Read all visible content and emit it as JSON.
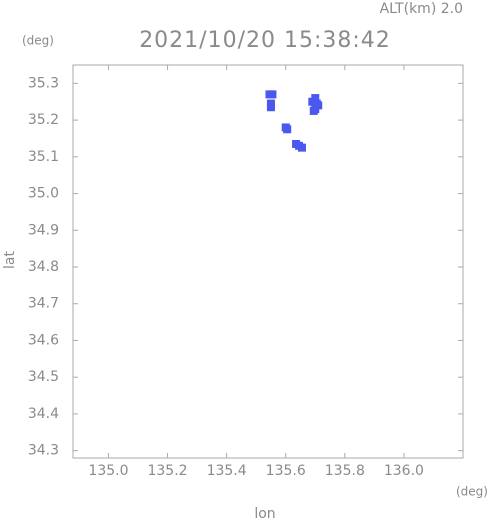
{
  "chart_data": {
    "type": "scatter",
    "title": "2021/10/20 15:38:42",
    "annotation": "ALT(km) 2.0",
    "y_unit": "(deg)",
    "x_unit": "(deg)",
    "x_label": "lon",
    "y_label": "lat",
    "color": "#4a58f0",
    "series": [
      {
        "x": [
          135.545,
          135.555,
          135.55,
          135.55,
          135.6,
          135.605,
          135.635,
          135.645,
          135.655,
          135.69,
          135.7,
          135.705,
          135.7,
          135.695,
          135.71
        ],
        "values": [
          35.27,
          35.27,
          35.245,
          35.235,
          35.18,
          35.175,
          35.135,
          35.13,
          35.125,
          35.25,
          35.26,
          35.245,
          35.23,
          35.225,
          35.24
        ]
      }
    ],
    "xlim": [
      134.88,
      136.2
    ],
    "ylim": [
      34.28,
      35.35
    ],
    "xticks": [
      {
        "value": 135,
        "label": "135.0"
      },
      135.2,
      135.4,
      135.6,
      135.8,
      {
        "value": 136,
        "label": "136.0"
      }
    ],
    "yticks": [
      34.3,
      34.4,
      34.5,
      34.6,
      34.7,
      34.8,
      34.9,
      {
        "value": 35,
        "label": "35.0"
      },
      35.1,
      35.2,
      35.3
    ],
    "grid": false
  }
}
